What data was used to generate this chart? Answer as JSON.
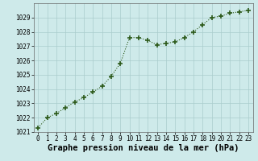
{
  "x": [
    0,
    1,
    2,
    3,
    4,
    5,
    6,
    7,
    8,
    9,
    10,
    11,
    12,
    13,
    14,
    15,
    16,
    17,
    18,
    19,
    20,
    21,
    22,
    23
  ],
  "y": [
    1021.3,
    1022.0,
    1022.3,
    1022.7,
    1023.1,
    1023.4,
    1023.8,
    1024.2,
    1024.9,
    1025.8,
    1027.6,
    1027.6,
    1027.4,
    1027.1,
    1027.2,
    1027.3,
    1027.6,
    1028.0,
    1028.5,
    1029.0,
    1029.1,
    1029.3,
    1029.4,
    1029.5
  ],
  "ylim": [
    1021,
    1030
  ],
  "xlim": [
    -0.5,
    23.5
  ],
  "yticks": [
    1021,
    1022,
    1023,
    1024,
    1025,
    1026,
    1027,
    1028,
    1029
  ],
  "xticks": [
    0,
    1,
    2,
    3,
    4,
    5,
    6,
    7,
    8,
    9,
    10,
    11,
    12,
    13,
    14,
    15,
    16,
    17,
    18,
    19,
    20,
    21,
    22,
    23
  ],
  "xlabel": "Graphe pression niveau de la mer (hPa)",
  "line_color": "#2d5a1b",
  "marker": "+",
  "marker_size": 4,
  "marker_linewidth": 1.2,
  "linewidth": 0.8,
  "bg_color": "#ceeaea",
  "grid_color": "#aacccc",
  "tick_fontsize": 5.5,
  "xlabel_fontsize": 7.5,
  "xlabel_fontweight": "bold"
}
